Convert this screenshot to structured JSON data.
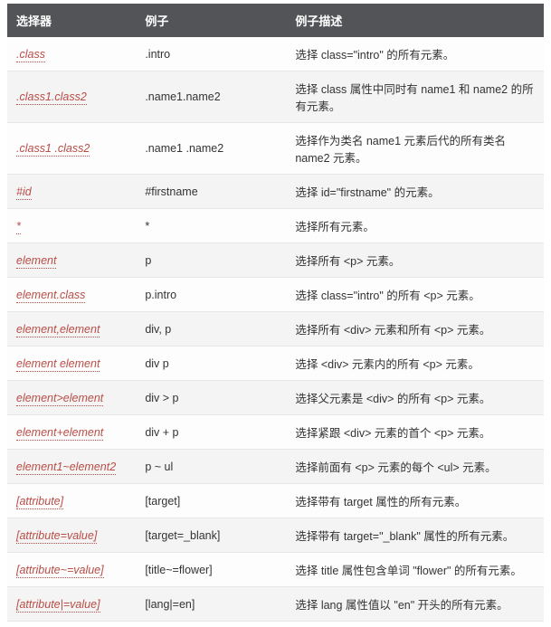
{
  "table": {
    "headers": {
      "selector": "选择器",
      "example": "例子",
      "description": "例子描述"
    },
    "rows": [
      {
        "selector": ".class",
        "example": ".intro",
        "description": "选择 class=\"intro\" 的所有元素。"
      },
      {
        "selector": ".class1.class2",
        "example": ".name1.name2",
        "description": "选择 class 属性中同时有 name1 和 name2 的所有元素。"
      },
      {
        "selector": ".class1 .class2",
        "example": ".name1 .name2",
        "description": "选择作为类名 name1 元素后代的所有类名 name2 元素。"
      },
      {
        "selector": "#id",
        "example": "#firstname",
        "description": "选择 id=\"firstname\" 的元素。"
      },
      {
        "selector": "*",
        "example": "*",
        "description": "选择所有元素。"
      },
      {
        "selector": "element",
        "example": "p",
        "description": "选择所有 <p> 元素。"
      },
      {
        "selector": "element.class",
        "example": "p.intro",
        "description": "选择 class=\"intro\" 的所有 <p> 元素。"
      },
      {
        "selector": "element,element",
        "example": "div, p",
        "description": "选择所有 <div> 元素和所有 <p> 元素。"
      },
      {
        "selector": "element element",
        "example": "div p",
        "description": "选择 <div> 元素内的所有 <p> 元素。"
      },
      {
        "selector": "element>element",
        "example": "div > p",
        "description": "选择父元素是 <div> 的所有 <p> 元素。"
      },
      {
        "selector": "element+element",
        "example": "div + p",
        "description": "选择紧跟 <div> 元素的首个 <p> 元素。"
      },
      {
        "selector": "element1~element2",
        "example": "p ~ ul",
        "description": "选择前面有 <p> 元素的每个 <ul> 元素。"
      },
      {
        "selector": "[attribute]",
        "example": "[target]",
        "description": "选择带有 target 属性的所有元素。"
      },
      {
        "selector": "[attribute=value]",
        "example": "[target=_blank]",
        "description": "选择带有 target=\"_blank\" 属性的所有元素。"
      },
      {
        "selector": "[attribute~=value]",
        "example": "[title~=flower]",
        "description": "选择 title 属性包含单词 \"flower\" 的所有元素。"
      },
      {
        "selector": "[attribute|=value]",
        "example": "[lang|=en]",
        "description": "选择 lang 属性值以 \"en\" 开头的所有元素。"
      }
    ]
  },
  "style": {
    "header_bg": "#525457",
    "header_fg": "#ffffff",
    "row_bg": "#fdfdfd",
    "row_alt_bg": "#f4f4f4",
    "selector_color": "#b84d46",
    "border_color": "#e6e6e6"
  }
}
